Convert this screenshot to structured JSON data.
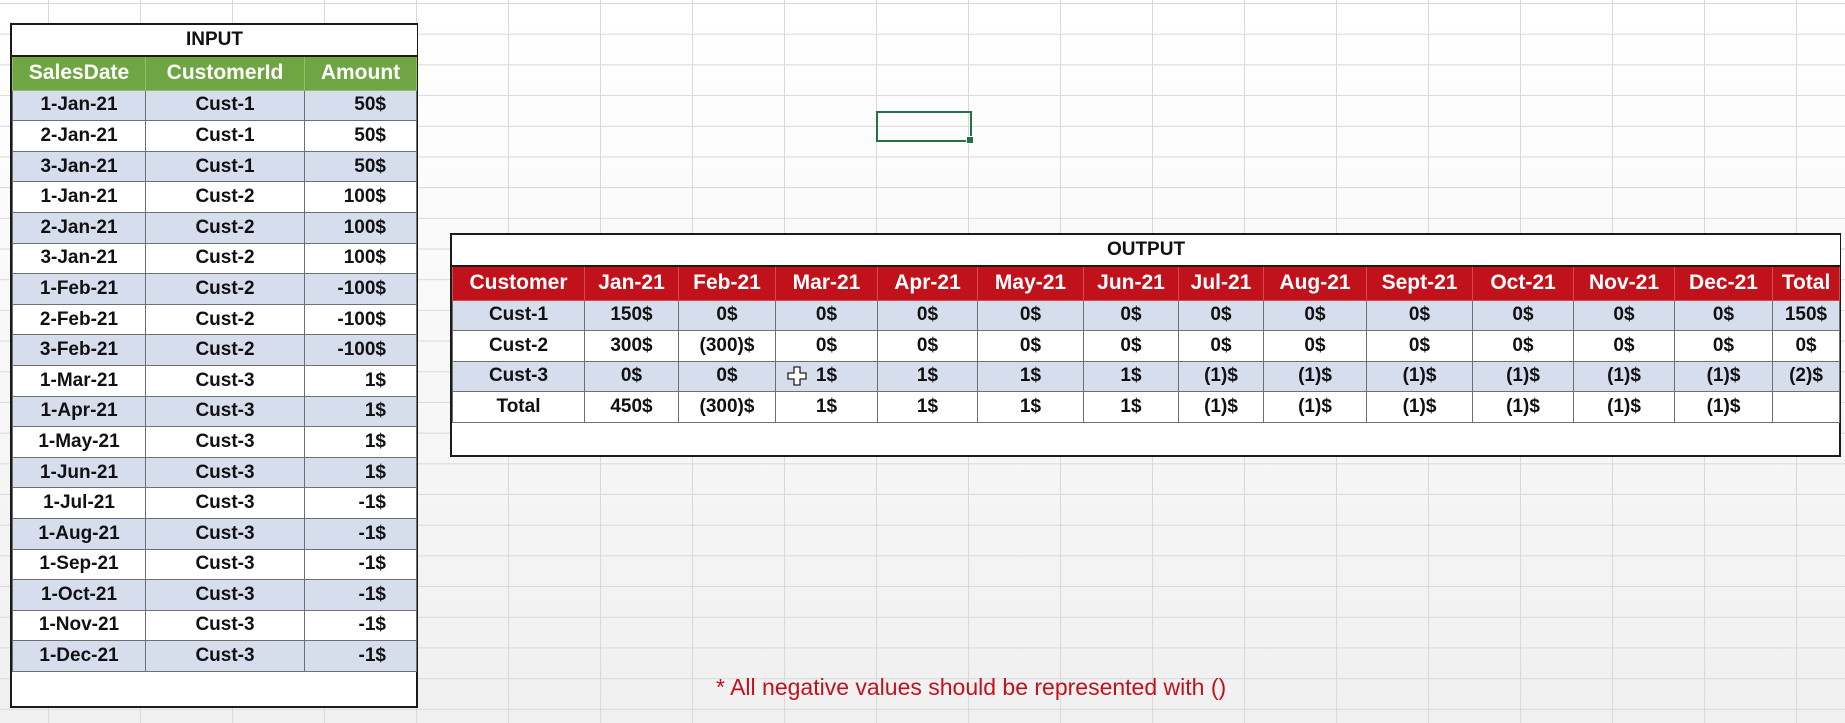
{
  "input": {
    "title": "INPUT",
    "headers": [
      "SalesDate",
      "CustomerId",
      "Amount"
    ],
    "rows": [
      [
        "1-Jan-21",
        "Cust-1",
        "50$"
      ],
      [
        "2-Jan-21",
        "Cust-1",
        "50$"
      ],
      [
        "3-Jan-21",
        "Cust-1",
        "50$"
      ],
      [
        "1-Jan-21",
        "Cust-2",
        "100$"
      ],
      [
        "2-Jan-21",
        "Cust-2",
        "100$"
      ],
      [
        "3-Jan-21",
        "Cust-2",
        "100$"
      ],
      [
        "1-Feb-21",
        "Cust-2",
        "-100$"
      ],
      [
        "2-Feb-21",
        "Cust-2",
        "-100$"
      ],
      [
        "3-Feb-21",
        "Cust-2",
        "-100$"
      ],
      [
        "1-Mar-21",
        "Cust-3",
        "1$"
      ],
      [
        "1-Apr-21",
        "Cust-3",
        "1$"
      ],
      [
        "1-May-21",
        "Cust-3",
        "1$"
      ],
      [
        "1-Jun-21",
        "Cust-3",
        "1$"
      ],
      [
        "1-Jul-21",
        "Cust-3",
        "-1$"
      ],
      [
        "1-Aug-21",
        "Cust-3",
        "-1$"
      ],
      [
        "1-Sep-21",
        "Cust-3",
        "-1$"
      ],
      [
        "1-Oct-21",
        "Cust-3",
        "-1$"
      ],
      [
        "1-Nov-21",
        "Cust-3",
        "-1$"
      ],
      [
        "1-Dec-21",
        "Cust-3",
        "-1$"
      ]
    ]
  },
  "output": {
    "title": "OUTPUT",
    "headers": [
      "Customer",
      "Jan-21",
      "Feb-21",
      "Mar-21",
      "Apr-21",
      "May-21",
      "Jun-21",
      "Jul-21",
      "Aug-21",
      "Sept-21",
      "Oct-21",
      "Nov-21",
      "Dec-21",
      "Total"
    ],
    "rows": [
      [
        "Cust-1",
        "150$",
        "0$",
        "0$",
        "0$",
        "0$",
        "0$",
        "0$",
        "0$",
        "0$",
        "0$",
        "0$",
        "0$",
        "150$"
      ],
      [
        "Cust-2",
        "300$",
        "(300)$",
        "0$",
        "0$",
        "0$",
        "0$",
        "0$",
        "0$",
        "0$",
        "0$",
        "0$",
        "0$",
        "0$"
      ],
      [
        "Cust-3",
        "0$",
        "0$",
        "1$",
        "1$",
        "1$",
        "1$",
        "(1)$",
        "(1)$",
        "(1)$",
        "(1)$",
        "(1)$",
        "(1)$",
        "(2)$"
      ],
      [
        "Total",
        "450$",
        "(300)$",
        "1$",
        "1$",
        "1$",
        "1$",
        "(1)$",
        "(1)$",
        "(1)$",
        "(1)$",
        "(1)$",
        "(1)$",
        ""
      ]
    ]
  },
  "note": "* All negative values should be represented with ()",
  "colors": {
    "input_header": "#70a544",
    "output_header": "#c1121c",
    "band": "#d6dded",
    "note": "#c1121c",
    "selection": "#217346"
  },
  "icons": {
    "cursor": "excel-plus-cursor-icon"
  }
}
